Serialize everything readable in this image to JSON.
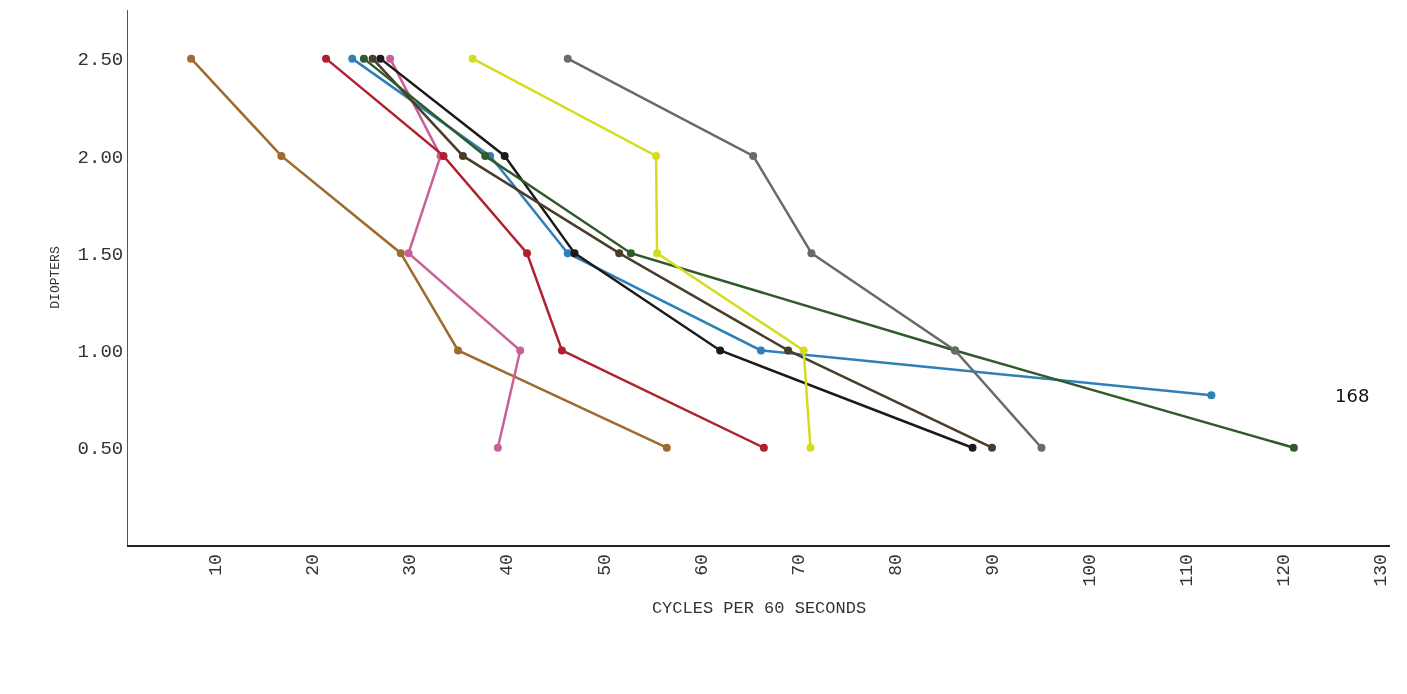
{
  "chart_data": {
    "type": "line",
    "xlabel": "CYCLES PER 60 SECONDS",
    "ylabel": "DIOPTERS",
    "xlim": [
      1,
      131
    ],
    "ylim": [
      0,
      2.75
    ],
    "xticks": [
      10,
      20,
      30,
      40,
      50,
      60,
      70,
      80,
      90,
      100,
      110,
      120,
      130
    ],
    "yticks": [
      {
        "value": 0.5,
        "label": "0.50"
      },
      {
        "value": 1.0,
        "label": "1.00"
      },
      {
        "value": 1.5,
        "label": "1.50"
      },
      {
        "value": 2.0,
        "label": "2.00"
      },
      {
        "value": 2.5,
        "label": "2.50"
      }
    ],
    "marker": "circle",
    "line_style": "solid",
    "series": [
      {
        "color": "#a0692e",
        "x": [
          7.5,
          16.8,
          29.1,
          35.0,
          56.5
        ],
        "values": [
          2.5,
          2.0,
          1.5,
          1.0,
          0.5
        ]
      },
      {
        "color": "#c9609a",
        "x": [
          28.0,
          33.2,
          29.9,
          41.4,
          39.1
        ],
        "values": [
          2.5,
          2.0,
          1.5,
          1.0,
          0.5
        ]
      },
      {
        "color": "#b0202e",
        "x": [
          21.4,
          33.5,
          42.1,
          45.7,
          66.5
        ],
        "values": [
          2.5,
          2.0,
          1.5,
          1.0,
          0.5
        ]
      },
      {
        "color": "#2f7fb8",
        "x": [
          24.1,
          38.3,
          46.3,
          66.2,
          112.6
        ],
        "values": [
          2.5,
          2.0,
          1.5,
          1.0,
          0.77
        ]
      },
      {
        "color": "#1a1a1a",
        "x": [
          27.0,
          39.8,
          47.0,
          62.0,
          88.0
        ],
        "values": [
          2.5,
          2.0,
          1.5,
          1.0,
          0.5
        ]
      },
      {
        "color": "#4a3d2a",
        "x": [
          26.2,
          35.5,
          51.6,
          69.0,
          90.0
        ],
        "values": [
          2.5,
          2.0,
          1.5,
          1.0,
          0.5
        ]
      },
      {
        "color": "#2f5a2a",
        "x": [
          25.3,
          37.8,
          52.8,
          86.2,
          121.1
        ],
        "values": [
          2.5,
          2.0,
          1.5,
          1.0,
          0.5
        ]
      },
      {
        "color": "#d4dc1e",
        "x": [
          36.5,
          55.4,
          55.5,
          70.6,
          71.3
        ],
        "values": [
          2.5,
          2.0,
          1.5,
          1.0,
          0.5
        ]
      },
      {
        "color": "#6a6a6a",
        "x": [
          46.3,
          65.4,
          71.4,
          86.2,
          95.1
        ],
        "values": [
          2.5,
          2.0,
          1.5,
          1.0,
          0.5
        ]
      }
    ],
    "annotations": [
      "168"
    ]
  }
}
